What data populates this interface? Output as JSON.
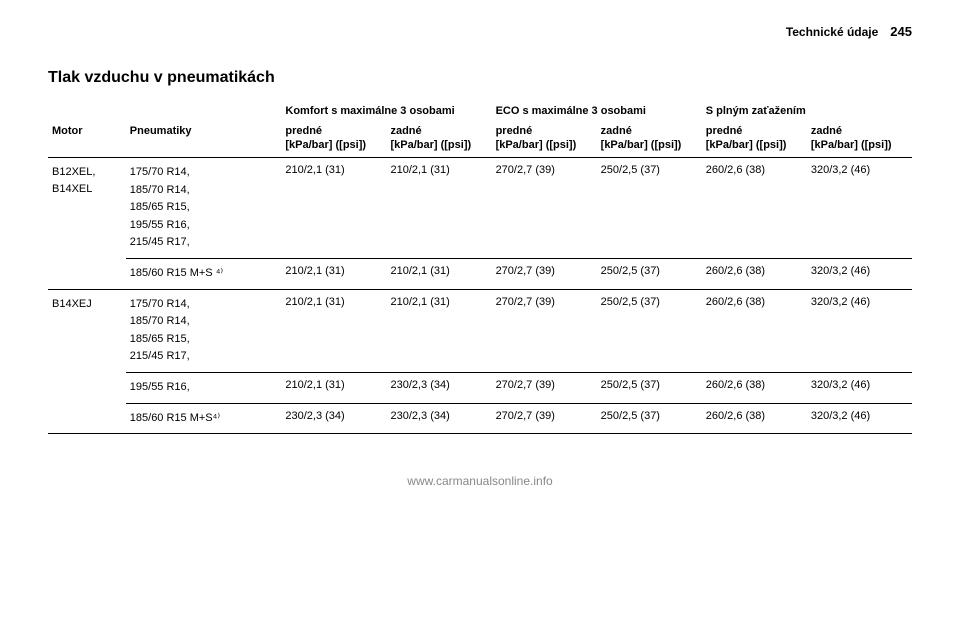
{
  "header": {
    "section_name": "Technické údaje",
    "page_number": "245"
  },
  "title": "Tlak vzduchu v pneumatikách",
  "columns": {
    "group_labels": {
      "comfort": "Komfort s maximálne 3 osobami",
      "eco": "ECO s maximálne 3 osobami",
      "full": "S plným zaťažením"
    },
    "motor_label": "Motor",
    "tyres_label": "Pneumatiky",
    "front": "predné",
    "rear": "zadné",
    "unit": "[kPa/bar] ([psi])"
  },
  "groups": [
    {
      "motor": "B12XEL, B14XEL",
      "tyres_rows": [
        {
          "tyres": "175/70 R14,\n185/70 R14,\n185/65 R15,\n195/55 R16,\n215/45 R17,",
          "vals": [
            "210/2,1 (31)",
            "210/2,1 (31)",
            "270/2,7 (39)",
            "250/2,5 (37)",
            "260/2,6 (38)",
            "320/3,2 (46)"
          ]
        },
        {
          "tyres": "185/60 R15 M+S ⁴⁾",
          "vals": [
            "210/2,1 (31)",
            "210/2,1 (31)",
            "270/2,7 (39)",
            "250/2,5 (37)",
            "260/2,6 (38)",
            "320/3,2 (46)"
          ]
        }
      ]
    },
    {
      "motor": "B14XEJ",
      "tyres_rows": [
        {
          "tyres": "175/70 R14,\n185/70 R14,\n185/65 R15,\n215/45 R17,",
          "vals": [
            "210/2,1 (31)",
            "210/2,1 (31)",
            "270/2,7 (39)",
            "250/2,5 (37)",
            "260/2,6 (38)",
            "320/3,2 (46)"
          ]
        },
        {
          "tyres": "195/55 R16,",
          "vals": [
            "210/2,1 (31)",
            "230/2,3 (34)",
            "270/2,7 (39)",
            "250/2,5 (37)",
            "260/2,6 (38)",
            "320/3,2 (46)"
          ]
        },
        {
          "tyres": "185/60 R15 M+S⁴⁾",
          "vals": [
            "230/2,3 (34)",
            "230/2,3 (34)",
            "270/2,7 (39)",
            "250/2,5 (37)",
            "260/2,6 (38)",
            "320/3,2 (46)"
          ]
        }
      ]
    }
  ],
  "footer": "www.carmanualsonline.info"
}
